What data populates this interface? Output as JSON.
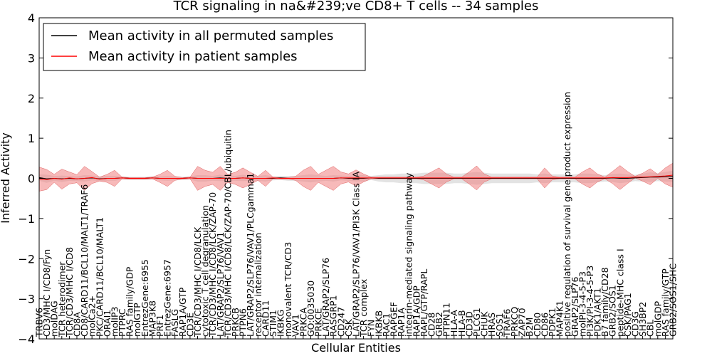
{
  "chart_data": {
    "type": "line",
    "title": "TCR signaling in na&#239;ve CD8+ T cells -- 34 samples",
    "xlabel": "Cellular Entities",
    "ylabel": "Inferred Activity",
    "ylim": [
      -4,
      4
    ],
    "yticks": [
      -4,
      -3,
      -2,
      -1,
      0,
      1,
      2,
      3,
      4
    ],
    "ytick_labels": [
      "−4",
      "−3",
      "−2",
      "−1",
      "0",
      "1",
      "2",
      "3",
      "4"
    ],
    "legend_position": "top-left",
    "colors": {
      "permuted_line": "#000000",
      "patient_line": "#ff0000",
      "patient_band": "#f08080",
      "permuted_band": "#c8c8c8"
    },
    "categories": [
      "TRBV6",
      "CD3/MHC I/CD8/Fyn",
      "molDAG",
      "TCR heterodimer",
      "TCR/CD3/MHC I/CD8",
      "CD8A",
      "CD8/CARD11/BCL10/MALT1/TRAF6",
      "molCa2+",
      "PKC/CARD11/BCL10/MALT1",
      "ORAI1",
      "molIP3",
      "PTPRC",
      "RAS family/GDP",
      "molGTP",
      "EntrezGene:6955",
      "MAP3K8",
      "PRF1",
      "EntrezGene:6957",
      "FASLG",
      "RAP1A/GTP",
      "CD3E",
      "TCR/CD3/MHC I/CD8/LCK",
      "cytotoxic T cell degranulation",
      "TCR/CD3/MHC I/CD8/LCK/ZAP-70",
      "LAT/GRAP2/SLP76/VAV1",
      "TCR/CD3/MHC I/CD8/LCK/ZAP-70/CBL/ubiquitin",
      "PRKCB",
      "PTPN6",
      "LAT/GRAP2/SLP76/VAV1/PLCgamma1",
      "receptor internalization",
      "CARD11",
      "STIM1",
      "IKBKG",
      "monovalent TCR/CD3",
      "VAV1",
      "PRKCA",
      "GO:0035030",
      "PRKCE",
      "LAT/GRAP2/SLP76",
      "RASGRP1",
      "CD247",
      "CSK",
      "LAT/GRAP2/SLP76/VAV1/PI3K Class IA",
      "TCR complex",
      "FYN",
      "IKBKB",
      "RAC1",
      "RAPGEF",
      "RAP1A",
      "integrin-mediated signaling pathway",
      "RAP1A/GDP",
      "RAPL/GTP/RAPL",
      "CD28",
      "GRB2",
      "PTPN11",
      "HLA-A",
      "HLA-B",
      "CD3D",
      "PLCG1",
      "CHUK",
      "HRAS",
      "SOS1",
      "TRAF6",
      "PRKCQ",
      "ZAP70",
      "B2M",
      "CD80",
      "CD86",
      "PDPK1",
      "MAP4K1",
      "positive regulation of survival gene product expression",
      "GRAP2/SLP76",
      "molPI-3-4-5-P3",
      "PI3K/PI-3-4-5-P3",
      "PDK1/AKT1",
      "B7 family/CD28",
      "GRB2/SOS1",
      "peptide-MHC class I",
      "CSK/PAG1",
      "CD3G",
      "SH3BP2",
      "CBL",
      "molGDP",
      "RAS family/GTP",
      "GRB2/SOS1/SHC"
    ],
    "series": [
      {
        "name": "Mean activity in all permuted samples",
        "values": [
          0.02,
          -0.01,
          0.0,
          -0.01,
          0.0,
          -0.01,
          0.0,
          0.01,
          -0.01,
          0.0,
          0.0,
          0.01,
          0.0,
          0.0,
          0.0,
          0.01,
          0.0,
          0.0,
          0.0,
          0.0,
          0.01,
          0.0,
          0.0,
          0.0,
          0.01,
          0.0,
          0.0,
          0.01,
          0.0,
          0.0,
          0.0,
          0.0,
          0.01,
          0.0,
          0.0,
          0.0,
          0.0,
          0.0,
          0.0,
          0.0,
          0.01,
          0.0,
          0.0,
          0.0,
          0.01,
          0.0,
          0.0,
          0.0,
          0.0,
          0.0,
          0.0,
          0.0,
          0.0,
          0.0,
          0.0,
          0.0,
          0.0,
          0.0,
          0.0,
          0.0,
          0.0,
          0.0,
          0.0,
          0.0,
          0.0,
          0.0,
          0.0,
          0.0,
          0.0,
          0.0,
          0.0,
          0.0,
          0.0,
          0.0,
          0.0,
          0.0,
          0.01,
          0.0,
          0.0,
          0.01,
          0.02,
          0.03,
          0.03,
          0.04,
          0.05
        ]
      },
      {
        "name": "Mean activity in patient samples",
        "values": [
          -0.02,
          -0.03,
          0.0,
          -0.02,
          0.01,
          -0.01,
          0.0,
          0.02,
          -0.02,
          0.0,
          0.0,
          0.01,
          0.0,
          0.0,
          0.0,
          0.01,
          0.0,
          0.0,
          0.0,
          0.0,
          0.01,
          0.0,
          0.0,
          0.0,
          0.0,
          0.0,
          0.0,
          0.01,
          0.0,
          0.0,
          0.0,
          0.01,
          0.0,
          0.0,
          0.0,
          0.0,
          0.0,
          0.0,
          0.0,
          0.0,
          0.01,
          0.01,
          0.01,
          0.01,
          0.01,
          0.01,
          0.01,
          0.01,
          0.01,
          0.01,
          0.01,
          0.01,
          0.01,
          0.01,
          0.01,
          0.01,
          0.01,
          0.01,
          0.01,
          0.01,
          0.01,
          0.01,
          0.01,
          0.01,
          0.01,
          0.01,
          0.01,
          0.01,
          0.01,
          0.01,
          0.01,
          0.01,
          0.01,
          0.01,
          0.01,
          0.01,
          0.02,
          0.02,
          0.02,
          0.03,
          0.03,
          0.04,
          0.05,
          0.06,
          0.08
        ]
      }
    ],
    "patient_band_halfwidth": [
      0.3,
      0.25,
      0.1,
      0.25,
      0.15,
      0.1,
      0.3,
      0.15,
      0.05,
      0.1,
      0.2,
      0.02,
      0.02,
      0.02,
      0.02,
      0.02,
      0.1,
      0.2,
      0.05,
      0.02,
      0.02,
      0.3,
      0.2,
      0.15,
      0.3,
      0.1,
      0.15,
      0.25,
      0.15,
      0.05,
      0.2,
      0.02,
      0.02,
      0.02,
      0.05,
      0.2,
      0.3,
      0.1,
      0.2,
      0.3,
      0.15,
      0.1,
      0.2,
      0.1,
      0.02,
      0.02,
      0.02,
      0.02,
      0.02,
      0.02,
      0.02,
      0.05,
      0.15,
      0.25,
      0.1,
      0.02,
      0.02,
      0.15,
      0.3,
      0.1,
      0.02,
      0.02,
      0.02,
      0.02,
      0.02,
      0.02,
      0.02,
      0.25,
      0.05,
      0.02,
      0.02,
      0.02,
      0.15,
      0.25,
      0.1,
      0.02,
      0.15,
      0.3,
      0.15,
      0.02,
      0.1,
      0.2,
      0.05,
      0.2,
      0.3
    ],
    "permuted_band_halfwidth": [
      0.08,
      0.1,
      0.06,
      0.08,
      0.06,
      0.06,
      0.08,
      0.06,
      0.06,
      0.06,
      0.06,
      0.04,
      0.04,
      0.04,
      0.04,
      0.04,
      0.05,
      0.06,
      0.05,
      0.04,
      0.04,
      0.08,
      0.08,
      0.06,
      0.08,
      0.06,
      0.06,
      0.08,
      0.06,
      0.06,
      0.08,
      0.05,
      0.05,
      0.06,
      0.06,
      0.08,
      0.1,
      0.08,
      0.06,
      0.08,
      0.06,
      0.06,
      0.08,
      0.08,
      0.05,
      0.08,
      0.1,
      0.1,
      0.12,
      0.12,
      0.12,
      0.14,
      0.14,
      0.14,
      0.14,
      0.12,
      0.12,
      0.14,
      0.16,
      0.14,
      0.12,
      0.12,
      0.12,
      0.12,
      0.12,
      0.12,
      0.1,
      0.12,
      0.1,
      0.1,
      0.1,
      0.1,
      0.12,
      0.12,
      0.1,
      0.08,
      0.1,
      0.12,
      0.1,
      0.08,
      0.1,
      0.12,
      0.1,
      0.12,
      0.14
    ]
  }
}
